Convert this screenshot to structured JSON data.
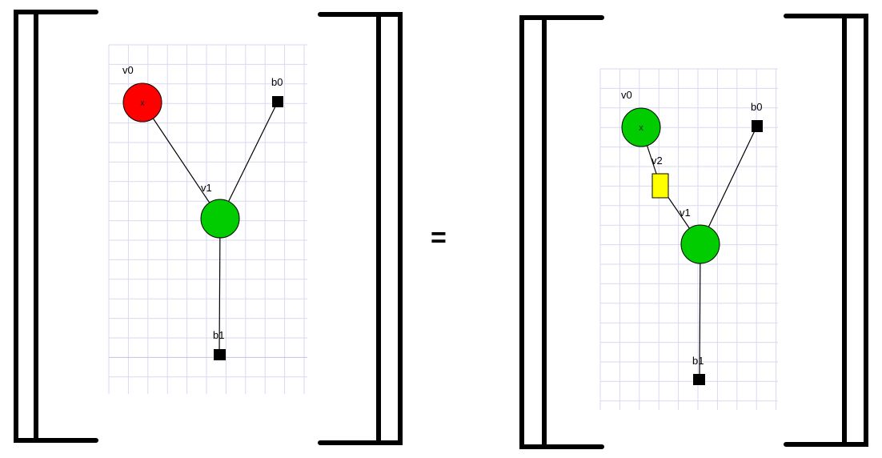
{
  "equals_symbol": "=",
  "colors": {
    "z_spider": "#00cc00",
    "x_spider": "#ff0000",
    "hadamard_box": "#ffff00",
    "boundary": "#000000",
    "grid": "#d9d9f0"
  },
  "diagrams": [
    {
      "side": "left",
      "vertices": [
        {
          "id": "v0",
          "label": "v0",
          "kind": "spider",
          "color": "#ff0000",
          "phase": "x"
        },
        {
          "id": "v1",
          "label": "v1",
          "kind": "spider",
          "color": "#00cc00",
          "phase": ""
        },
        {
          "id": "b0",
          "label": "b0",
          "kind": "boundary",
          "color": "#000000",
          "phase": ""
        },
        {
          "id": "b1",
          "label": "b1",
          "kind": "boundary",
          "color": "#000000",
          "phase": ""
        }
      ],
      "edges": [
        [
          "v0",
          "v1"
        ],
        [
          "b0",
          "v1"
        ],
        [
          "v1",
          "b1"
        ]
      ]
    },
    {
      "side": "right",
      "vertices": [
        {
          "id": "v0",
          "label": "v0",
          "kind": "spider",
          "color": "#00cc00",
          "phase": "x"
        },
        {
          "id": "v2",
          "label": "v2",
          "kind": "hadamard",
          "color": "#ffff00",
          "phase": ""
        },
        {
          "id": "v1",
          "label": "v1",
          "kind": "spider",
          "color": "#00cc00",
          "phase": ""
        },
        {
          "id": "b0",
          "label": "b0",
          "kind": "boundary",
          "color": "#000000",
          "phase": ""
        },
        {
          "id": "b1",
          "label": "b1",
          "kind": "boundary",
          "color": "#000000",
          "phase": ""
        }
      ],
      "edges": [
        [
          "v0",
          "v2"
        ],
        [
          "v2",
          "v1"
        ],
        [
          "b0",
          "v1"
        ],
        [
          "v1",
          "b1"
        ]
      ]
    }
  ]
}
